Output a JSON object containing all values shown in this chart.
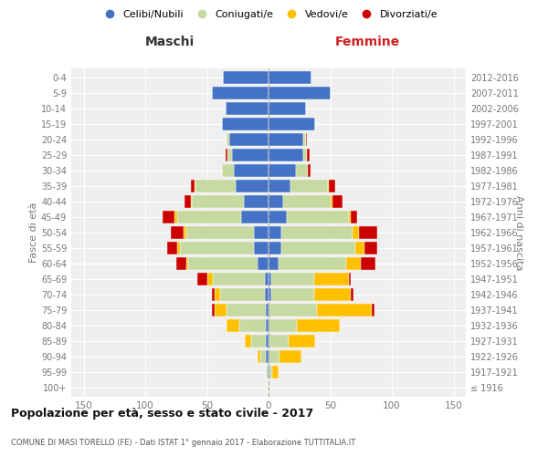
{
  "age_groups": [
    "100+",
    "95-99",
    "90-94",
    "85-89",
    "80-84",
    "75-79",
    "70-74",
    "65-69",
    "60-64",
    "55-59",
    "50-54",
    "45-49",
    "40-44",
    "35-39",
    "30-34",
    "25-29",
    "20-24",
    "15-19",
    "10-14",
    "5-9",
    "0-4"
  ],
  "birth_years": [
    "≤ 1916",
    "1917-1921",
    "1922-1926",
    "1927-1931",
    "1932-1936",
    "1937-1941",
    "1942-1946",
    "1947-1951",
    "1952-1956",
    "1957-1961",
    "1962-1966",
    "1967-1971",
    "1972-1976",
    "1977-1981",
    "1982-1986",
    "1987-1991",
    "1992-1996",
    "1997-2001",
    "2002-2006",
    "2007-2011",
    "2012-2016"
  ],
  "colors": {
    "celibi": "#4472c4",
    "coniugati": "#c5d9a0",
    "vedovi": "#ffc000",
    "divorziati": "#cc0000"
  },
  "males": {
    "celibi": [
      0,
      1,
      2,
      2,
      2,
      2,
      3,
      3,
      9,
      12,
      12,
      22,
      20,
      27,
      28,
      30,
      32,
      38,
      35,
      46,
      37
    ],
    "coniugati": [
      0,
      1,
      5,
      12,
      22,
      32,
      36,
      42,
      56,
      60,
      55,
      52,
      42,
      32,
      10,
      3,
      2,
      0,
      0,
      0,
      0
    ],
    "vedovi": [
      0,
      0,
      2,
      5,
      10,
      10,
      5,
      5,
      2,
      2,
      2,
      2,
      1,
      1,
      0,
      0,
      0,
      0,
      0,
      0,
      0
    ],
    "divorziati": [
      0,
      0,
      0,
      0,
      0,
      2,
      2,
      8,
      8,
      8,
      10,
      10,
      5,
      3,
      0,
      2,
      0,
      0,
      0,
      0,
      0
    ]
  },
  "females": {
    "celibi": [
      0,
      1,
      1,
      1,
      1,
      1,
      2,
      2,
      8,
      10,
      10,
      15,
      12,
      18,
      22,
      28,
      28,
      38,
      30,
      50,
      35
    ],
    "coniugati": [
      0,
      2,
      8,
      15,
      22,
      38,
      35,
      35,
      55,
      60,
      58,
      50,
      38,
      30,
      10,
      3,
      2,
      0,
      0,
      0,
      0
    ],
    "vedovi": [
      1,
      5,
      18,
      22,
      35,
      45,
      30,
      28,
      12,
      8,
      5,
      2,
      2,
      1,
      0,
      0,
      0,
      0,
      0,
      0,
      0
    ],
    "divorziati": [
      0,
      0,
      0,
      0,
      0,
      2,
      2,
      2,
      12,
      10,
      15,
      5,
      8,
      5,
      2,
      2,
      1,
      0,
      0,
      0,
      0
    ]
  },
  "xlim": 160,
  "xticks": [
    -150,
    -100,
    -50,
    0,
    50,
    100,
    150
  ],
  "title": "Popolazione per età, sesso e stato civile - 2017",
  "subtitle": "COMUNE DI MASI TORELLO (FE) - Dati ISTAT 1° gennaio 2017 - Elaborazione TUTTITALIA.IT",
  "maschi_label": "Maschi",
  "femmine_label": "Femmine",
  "ylabel_left": "Fasce di età",
  "ylabel_right": "Anni di nascita",
  "legend_labels": [
    "Celibi/Nubili",
    "Coniugati/e",
    "Vedovi/e",
    "Divorziati/e"
  ],
  "bg_color": "#efefef",
  "grid_color": "white",
  "maschi_color": "#333333",
  "femmine_color": "#cc2222",
  "tick_color": "#777777",
  "title_color": "#111111",
  "subtitle_color": "#555555"
}
